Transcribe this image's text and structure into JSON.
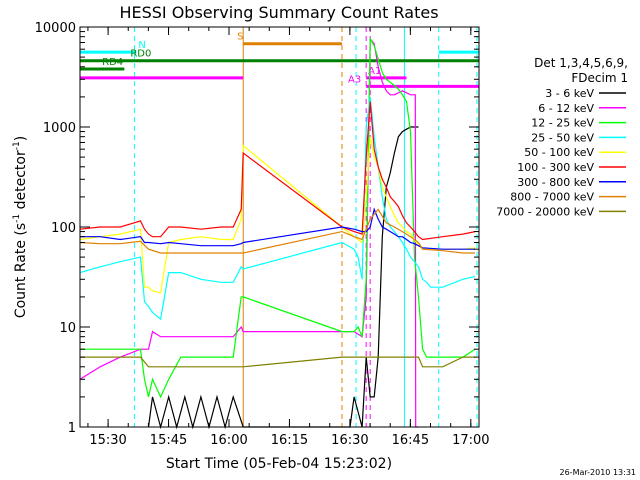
{
  "chart_data": {
    "type": "line",
    "title": "HESSI Observing Summary Count Rates",
    "xlabel": "Start Time (05-Feb-04 15:23:02)",
    "ylabel_main": "Count Rate (s",
    "ylabel_sup1": "-1",
    "ylabel_mid": " detector",
    "ylabel_sup2": "-1",
    "ylabel_end": ")",
    "x_unit": "minutes after 15:23:02",
    "xlim": [
      0,
      99
    ],
    "ylim": [
      1,
      10000
    ],
    "yscale": "log",
    "x_ticks": [
      {
        "x": 6.97,
        "label": "15:30"
      },
      {
        "x": 21.97,
        "label": "15:45"
      },
      {
        "x": 36.97,
        "label": "16:00"
      },
      {
        "x": 51.97,
        "label": "16:15"
      },
      {
        "x": 66.97,
        "label": "16:30"
      },
      {
        "x": 81.97,
        "label": "16:45"
      },
      {
        "x": 96.97,
        "label": "17:00"
      }
    ],
    "y_ticks": [
      {
        "y": 1,
        "label": "1"
      },
      {
        "y": 10,
        "label": "10"
      },
      {
        "y": 100,
        "label": "100"
      },
      {
        "y": 1000,
        "label": "1000"
      },
      {
        "y": 10000,
        "label": "10000"
      }
    ],
    "legend_header": [
      "Det 1,3,4,5,6,9,",
      "FDecim 1"
    ],
    "legend_position": "right",
    "series": [
      {
        "name": "3 - 6 keV",
        "color": "#000000",
        "x": [
          17,
          18,
          20,
          22,
          24,
          26,
          28,
          30,
          32,
          34,
          36,
          38,
          40.5,
          65,
          67,
          68,
          70,
          71,
          72,
          73,
          74,
          75,
          76,
          77,
          78,
          79,
          80,
          81,
          82,
          83,
          84
        ],
        "y": [
          1,
          2,
          1,
          2,
          1,
          2,
          1,
          2,
          1,
          2,
          1,
          2,
          1,
          1,
          1,
          2,
          1,
          5,
          2,
          2,
          5,
          80,
          250,
          350,
          550,
          800,
          900,
          950,
          1000,
          1000,
          1000
        ]
      },
      {
        "name": "6 - 12 keV",
        "color": "#ff00ff",
        "x": [
          0,
          5,
          10,
          15,
          17,
          18,
          20,
          25,
          30,
          35,
          38,
          40,
          40.5,
          65,
          68,
          70,
          71,
          72,
          73,
          74,
          75,
          76,
          77,
          78,
          79,
          80,
          81,
          82,
          83,
          83.2,
          83.3,
          84
        ],
        "y": [
          3,
          4,
          5,
          6,
          6,
          9,
          8,
          8,
          8,
          8,
          8,
          10,
          9,
          9,
          9,
          8,
          20,
          7600,
          6800,
          4000,
          2800,
          2300,
          2100,
          2100,
          2200,
          2300,
          2200,
          2100,
          2100,
          2100,
          1,
          1
        ]
      },
      {
        "name": "12 - 25 keV",
        "color": "#00ff00",
        "x": [
          0,
          5,
          10,
          15,
          16,
          17,
          18,
          20,
          22,
          25,
          30,
          35,
          38,
          40,
          40.5,
          65,
          68,
          69,
          70,
          71,
          72,
          73,
          74,
          75,
          76,
          77,
          78,
          79,
          80,
          81,
          82,
          83,
          84,
          85,
          86,
          87,
          88,
          90,
          95,
          98
        ],
        "y": [
          6,
          6,
          6,
          6,
          3,
          2,
          3,
          2,
          3,
          5,
          5,
          5,
          5,
          20,
          20,
          9,
          9,
          10,
          8,
          30,
          7600,
          6500,
          4800,
          3500,
          3000,
          2800,
          2600,
          2400,
          2100,
          1800,
          900,
          50,
          20,
          6,
          5,
          5,
          5,
          5,
          5,
          6
        ]
      },
      {
        "name": "25 - 50 keV",
        "color": "#00ffff",
        "x": [
          0,
          5,
          10,
          15,
          16,
          17,
          18,
          20,
          22,
          25,
          30,
          35,
          38,
          40,
          40.5,
          65,
          68,
          69,
          70,
          71,
          72,
          73,
          74,
          75,
          76,
          77,
          78,
          79,
          80,
          81,
          82,
          83,
          84,
          85,
          86,
          87,
          88,
          90,
          95,
          98
        ],
        "y": [
          35,
          40,
          45,
          50,
          18,
          16,
          14,
          12,
          35,
          35,
          30,
          28,
          28,
          40,
          38,
          70,
          60,
          50,
          30,
          1000,
          2000,
          800,
          400,
          200,
          120,
          100,
          90,
          80,
          70,
          60,
          50,
          45,
          40,
          30,
          28,
          25,
          25,
          25,
          30,
          32
        ]
      },
      {
        "name": "50 - 100 keV",
        "color": "#ffff00",
        "x": [
          0,
          5,
          10,
          15,
          16,
          17,
          18,
          20,
          22,
          25,
          30,
          35,
          38,
          40,
          40.5,
          65,
          68,
          70,
          71,
          72,
          73,
          74,
          75,
          76,
          77,
          78,
          79,
          80,
          81,
          82,
          83,
          84,
          85,
          90,
          95,
          98
        ],
        "y": [
          75,
          80,
          85,
          95,
          25,
          25,
          23,
          22,
          70,
          75,
          80,
          75,
          75,
          120,
          650,
          100,
          80,
          70,
          200,
          800,
          500,
          400,
          250,
          200,
          160,
          130,
          110,
          100,
          90,
          85,
          75,
          65,
          60,
          60,
          60,
          62
        ]
      },
      {
        "name": "100 - 300 keV",
        "color": "#ff0000",
        "x": [
          0,
          5,
          10,
          15,
          16,
          17,
          18,
          20,
          22,
          25,
          30,
          35,
          38,
          40,
          40.5,
          65,
          68,
          70,
          71,
          72,
          73,
          74,
          75,
          76,
          77,
          78,
          79,
          80,
          81,
          82,
          83,
          84,
          85,
          90,
          95,
          98
        ],
        "y": [
          95,
          100,
          100,
          115,
          95,
          85,
          80,
          80,
          100,
          100,
          95,
          100,
          100,
          150,
          550,
          100,
          90,
          85,
          500,
          1800,
          600,
          400,
          300,
          250,
          200,
          180,
          160,
          130,
          110,
          100,
          90,
          80,
          75,
          80,
          85,
          90
        ]
      },
      {
        "name": "300 - 800 keV",
        "color": "#0000ff",
        "x": [
          0,
          5,
          10,
          15,
          16,
          17,
          20,
          22,
          25,
          30,
          35,
          38,
          40,
          40.5,
          65,
          68,
          70,
          71,
          72,
          73,
          74,
          75,
          76,
          77,
          78,
          79,
          80,
          81,
          82,
          83,
          84,
          85,
          90,
          95,
          98
        ],
        "y": [
          80,
          80,
          75,
          80,
          70,
          70,
          68,
          70,
          68,
          65,
          65,
          65,
          68,
          70,
          100,
          95,
          90,
          90,
          100,
          150,
          120,
          100,
          95,
          90,
          85,
          80,
          80,
          75,
          70,
          68,
          65,
          62,
          60,
          60,
          60
        ]
      },
      {
        "name": "800 - 7000 keV",
        "color": "#e08000",
        "x": [
          0,
          5,
          10,
          15,
          17,
          20,
          25,
          30,
          35,
          38,
          40,
          40.5,
          65,
          68,
          70,
          72,
          74,
          76,
          78,
          80,
          82,
          84,
          85,
          90,
          95,
          98
        ],
        "y": [
          70,
          68,
          68,
          72,
          60,
          55,
          55,
          55,
          55,
          55,
          55,
          55,
          90,
          80,
          75,
          120,
          150,
          110,
          100,
          90,
          80,
          70,
          60,
          58,
          55,
          55
        ]
      },
      {
        "name": "7000 - 20000 keV",
        "color": "#808000",
        "x": [
          0,
          5,
          10,
          15,
          17,
          20,
          25,
          30,
          35,
          38,
          40,
          40.5,
          65,
          68,
          70,
          72,
          74,
          76,
          78,
          80,
          82,
          84,
          85,
          90,
          95,
          98
        ],
        "y": [
          5,
          5,
          5,
          5,
          4,
          4,
          4,
          4,
          4,
          4,
          4,
          4,
          5,
          5,
          5,
          5,
          5,
          5,
          5,
          5,
          5,
          5,
          4,
          4,
          5,
          5
        ]
      }
    ],
    "flag_bars": [
      {
        "label": "N",
        "color": "#00ffff",
        "segments": [
          [
            0,
            14
          ],
          [
            89,
            99
          ]
        ],
        "y": 5600,
        "label_x": 14
      },
      {
        "label": "RD0",
        "color": "#008000",
        "segments": [
          [
            0,
            99
          ]
        ],
        "y": 4600,
        "label_x": 12
      },
      {
        "label": "RD4",
        "color": "#008000",
        "segments": [
          [
            0,
            11
          ]
        ],
        "y": 3800,
        "label_x": 5
      },
      {
        "label": "S",
        "color": "#e08000",
        "segments": [
          [
            40.5,
            65
          ]
        ],
        "y": 6800,
        "label_x": 38.5
      },
      {
        "label": "A1",
        "color": "#ff00ff",
        "segments": [
          [
            0,
            40.5
          ],
          [
            71,
            81
          ]
        ],
        "y": 3100,
        "label_x": 71
      },
      {
        "label": "A3",
        "color": "#ff00ff",
        "segments": [
          [
            71,
            99
          ]
        ],
        "y": 2550,
        "label_x": 66
      }
    ],
    "vlines": [
      {
        "x": 13.5,
        "color": "#00ffff",
        "style": "dashed"
      },
      {
        "x": 40.5,
        "color": "#e08000",
        "style": "solid"
      },
      {
        "x": 65,
        "color": "#e08000",
        "style": "dashed"
      },
      {
        "x": 68.5,
        "color": "#00ffff",
        "style": "dashed"
      },
      {
        "x": 71,
        "color": "#ff00ff",
        "style": "dashed"
      },
      {
        "x": 72,
        "color": "#ff00ff",
        "style": "dashed"
      },
      {
        "x": 80.5,
        "color": "#00ffff",
        "style": "solid"
      },
      {
        "x": 89,
        "color": "#00ffff",
        "style": "dashed"
      },
      {
        "x": 98.5,
        "color": "#00ffff",
        "style": "dashed"
      }
    ],
    "timestamp": "26-Mar-2010 13:31"
  }
}
